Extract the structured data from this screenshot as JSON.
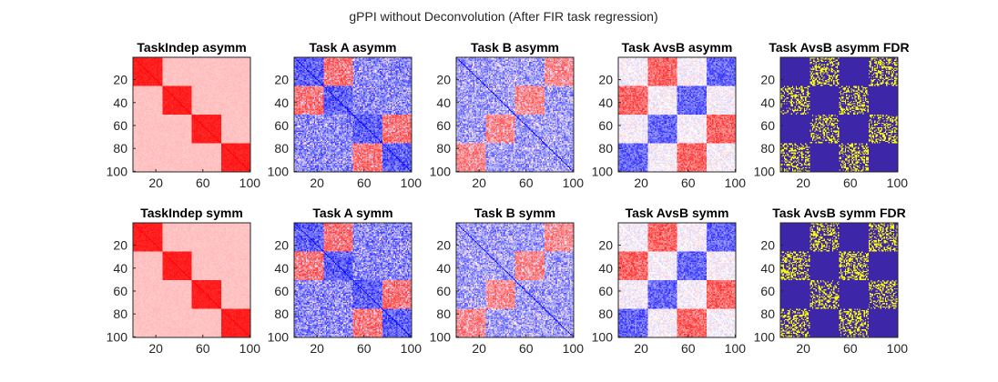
{
  "figure": {
    "suptitle": "gPPI without Deconvolution (After FIR task regression)"
  },
  "chart_data": [
    {
      "type": "heatmap",
      "title": "TaskIndep asymm",
      "pattern": "taskindep",
      "colorscale": "red",
      "size": 100,
      "block_size": 25,
      "xticks": [
        20,
        60,
        100
      ],
      "yticks": [
        20,
        40,
        60,
        80,
        100
      ],
      "xlim": [
        1,
        100
      ],
      "ylim": [
        1,
        100
      ],
      "y_reversed": true
    },
    {
      "type": "heatmap",
      "title": "Task A asymm",
      "pattern": "taskA",
      "colorscale": "bwr",
      "size": 100,
      "block_size": 25,
      "xticks": [
        20,
        60,
        100
      ],
      "yticks": [
        20,
        40,
        60,
        80,
        100
      ],
      "xlim": [
        1,
        100
      ],
      "ylim": [
        1,
        100
      ],
      "y_reversed": true
    },
    {
      "type": "heatmap",
      "title": "Task B asymm",
      "pattern": "taskB",
      "colorscale": "bwr",
      "size": 100,
      "block_size": 25,
      "xticks": [
        20,
        60,
        100
      ],
      "yticks": [
        20,
        40,
        60,
        80,
        100
      ],
      "xlim": [
        1,
        100
      ],
      "ylim": [
        1,
        100
      ],
      "y_reversed": true
    },
    {
      "type": "heatmap",
      "title": "Task AvsB asymm",
      "pattern": "avsb",
      "colorscale": "bwr",
      "size": 100,
      "block_size": 25,
      "xticks": [
        20,
        60,
        100
      ],
      "yticks": [
        20,
        40,
        60,
        80,
        100
      ],
      "xlim": [
        1,
        100
      ],
      "ylim": [
        1,
        100
      ],
      "y_reversed": true
    },
    {
      "type": "heatmap",
      "title": "Task AvsB asymm FDR",
      "pattern": "fdr",
      "colorscale": "binary",
      "size": 100,
      "block_size": 25,
      "xticks": [
        20,
        60,
        100
      ],
      "yticks": [
        20,
        40,
        60,
        80,
        100
      ],
      "xlim": [
        1,
        100
      ],
      "ylim": [
        1,
        100
      ],
      "y_reversed": true
    },
    {
      "type": "heatmap",
      "title": "TaskIndep symm",
      "pattern": "taskindep",
      "colorscale": "red",
      "size": 100,
      "block_size": 25,
      "xticks": [
        20,
        60,
        100
      ],
      "yticks": [
        20,
        40,
        60,
        80,
        100
      ],
      "xlim": [
        1,
        100
      ],
      "ylim": [
        1,
        100
      ],
      "y_reversed": true
    },
    {
      "type": "heatmap",
      "title": "Task A symm",
      "pattern": "taskA",
      "colorscale": "bwr",
      "size": 100,
      "block_size": 25,
      "xticks": [
        20,
        60,
        100
      ],
      "yticks": [
        20,
        40,
        60,
        80,
        100
      ],
      "xlim": [
        1,
        100
      ],
      "ylim": [
        1,
        100
      ],
      "y_reversed": true
    },
    {
      "type": "heatmap",
      "title": "Task B symm",
      "pattern": "taskB",
      "colorscale": "bwr",
      "size": 100,
      "block_size": 25,
      "xticks": [
        20,
        60,
        100
      ],
      "yticks": [
        20,
        40,
        60,
        80,
        100
      ],
      "xlim": [
        1,
        100
      ],
      "ylim": [
        1,
        100
      ],
      "y_reversed": true
    },
    {
      "type": "heatmap",
      "title": "Task AvsB symm",
      "pattern": "avsb",
      "colorscale": "bwr",
      "size": 100,
      "block_size": 25,
      "xticks": [
        20,
        60,
        100
      ],
      "yticks": [
        20,
        40,
        60,
        80,
        100
      ],
      "xlim": [
        1,
        100
      ],
      "ylim": [
        1,
        100
      ],
      "y_reversed": true
    },
    {
      "type": "heatmap",
      "title": "Task AvsB symm FDR",
      "pattern": "fdr",
      "colorscale": "binary",
      "size": 100,
      "block_size": 25,
      "xticks": [
        20,
        60,
        100
      ],
      "yticks": [
        20,
        40,
        60,
        80,
        100
      ],
      "xlim": [
        1,
        100
      ],
      "ylim": [
        1,
        100
      ],
      "y_reversed": true
    }
  ],
  "colors": {
    "red_high": "#ff0000",
    "blue_high": "#0000ff",
    "neutral": "#ffffff",
    "fdr_background": "#3e26a8",
    "fdr_significant": "#f9fb0e",
    "axis": "#262626"
  }
}
